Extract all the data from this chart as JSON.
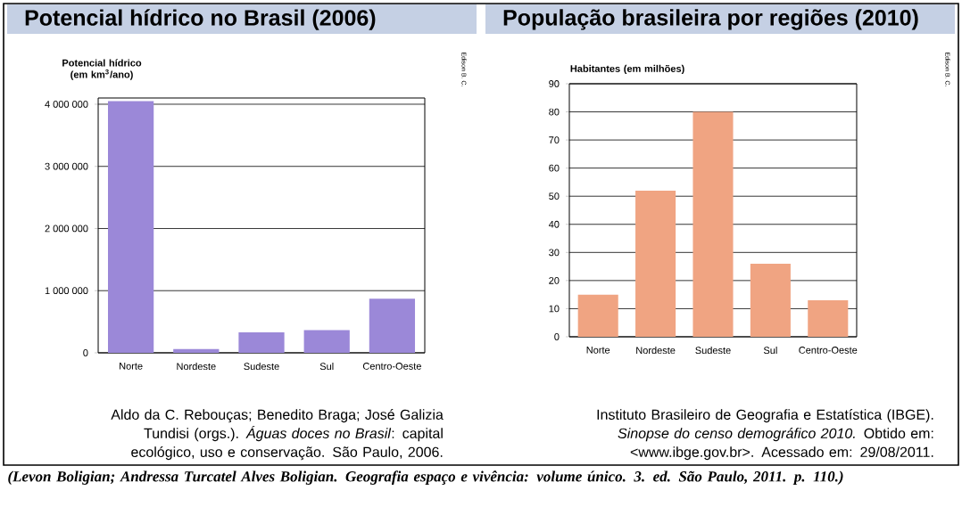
{
  "chart_data": [
    {
      "type": "bar",
      "title": "Potencial hídrico no Brasil (2006)",
      "ylabel": "Potencial hídrico (em km$^{3}$/ano)",
      "categories": [
        "Norte",
        "Nordeste",
        "Sudeste",
        "Sul",
        "Centro-Oeste"
      ],
      "values": [
        4050000,
        60000,
        330000,
        365000,
        870000
      ],
      "color": "#9b88d8",
      "ylim": [
        0,
        4100000
      ],
      "yticks": [
        0,
        {
          "value": 1000000,
          "label": "1 000 000"
        },
        {
          "value": 2000000,
          "label": "2 000 000"
        },
        {
          "value": 3000000,
          "label": "3 000 000"
        },
        {
          "value": 4000000,
          "label": "4 000 000"
        }
      ],
      "grid": "y",
      "annotations": [
        "Aldo da C. Rebouças; Benedito Braga; José Galizia Tundisi (orgs.). *Águas doces no Brasil*: capital ecológico, uso e conservação. São Paulo, 2006.",
        "Edison B. C."
      ]
    },
    {
      "type": "bar",
      "title": "População brasileira por regiões (2010)",
      "ylabel": "Habitantes (em milhões)",
      "categories": [
        "Norte",
        "Nordeste",
        "Sudeste",
        "Sul",
        "Centro-Oeste"
      ],
      "values": [
        15,
        52,
        80,
        26,
        13
      ],
      "color": "#f0a482",
      "ylim": [
        0,
        90
      ],
      "yticks": [
        0,
        10,
        20,
        30,
        40,
        50,
        60,
        70,
        80,
        90
      ],
      "grid": "y",
      "annotations": [
        "Instituto Brasileiro de Geografia e Estatística (IBGE). *Sinopse do censo demográfico 2010.* Obtido em: <www.ibge.gov.br>. Acessado em: 29/08/2011.",
        "Edison B. C.",
        "(Levon Boligian; Andressa Turcatel Alves Boligian. Geografia espaço e vivência: volume único. 3. ed. São Paulo, 2011. p. 110.)"
      ]
    }
  ]
}
